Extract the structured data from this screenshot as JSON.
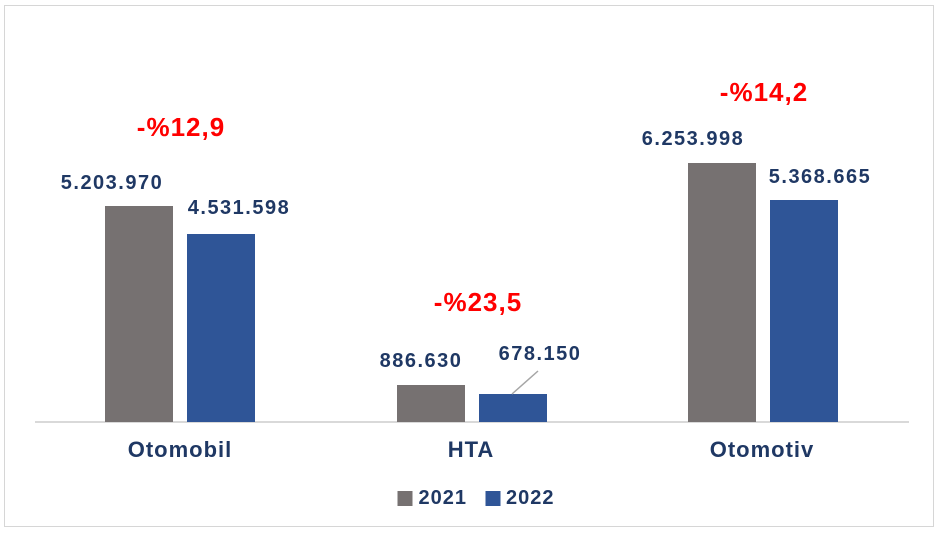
{
  "chart_data": {
    "type": "bar",
    "title": "",
    "categories": [
      "Otomobil",
      "HTA",
      "Otomotiv"
    ],
    "series": [
      {
        "name": "2021",
        "color": "#767171",
        "values": [
          5203970,
          886630,
          6253998
        ]
      },
      {
        "name": "2022",
        "color": "#2F5597",
        "values": [
          4531598,
          678150,
          5368665
        ]
      }
    ],
    "value_labels": [
      [
        "5.203.970",
        "886.630",
        "6.253.998"
      ],
      [
        "4.531.598",
        "678.150",
        "5.368.665"
      ]
    ],
    "change_labels": [
      "-%12,9",
      "-%23,5",
      "-%14,2"
    ],
    "change_label_color": "#FF0000",
    "value_label_color": "#1F3864",
    "axis_color": "#D9D9D9",
    "leader_line_color": "#A6A6A6",
    "ylim": [
      0,
      6500000
    ],
    "grid": false,
    "legend_position": "bottom-center"
  },
  "legend": {
    "items": [
      {
        "label": "2021",
        "color": "#767171"
      },
      {
        "label": "2022",
        "color": "#2F5597"
      }
    ]
  }
}
